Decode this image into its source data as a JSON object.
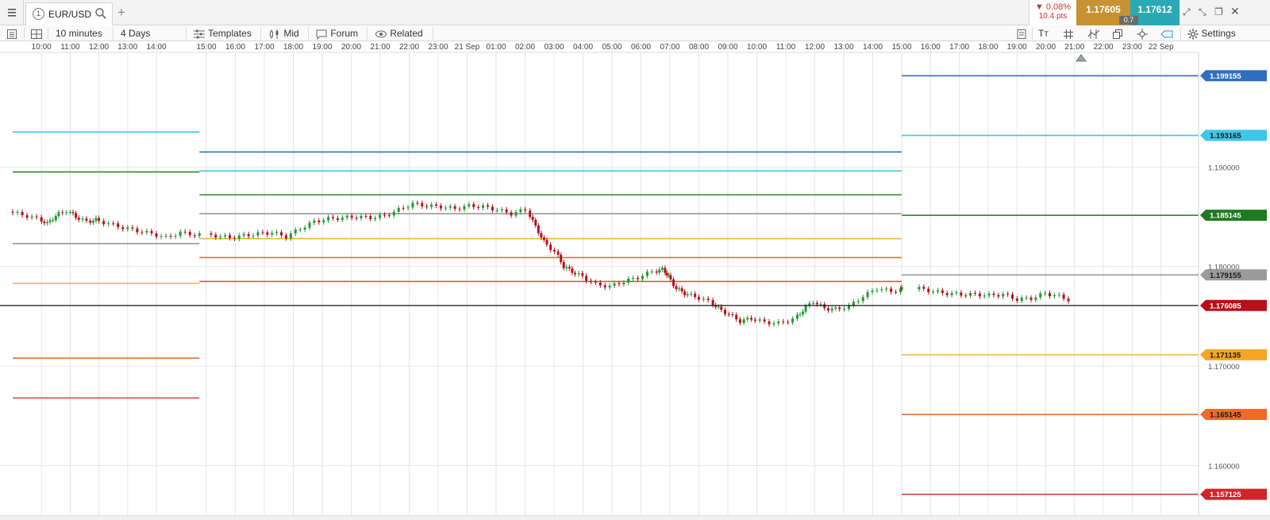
{
  "tabbar": {
    "menu_icon": "hamburger-icon",
    "tab_number": "1",
    "symbol": "EUR/USD",
    "search_icon": "search-icon",
    "add_tab": "+",
    "change_pct": "▼ 0.08%",
    "change_pts": "10.4 pts",
    "bid": "1.17605",
    "ask": "1.17612",
    "spread": "0.7",
    "bid_color": "#c89233",
    "ask_color": "#2aa9b5"
  },
  "toolbar": {
    "interval": "10 minutes",
    "range": "4 Days",
    "templates": "Templates",
    "price_type": "Mid",
    "forum": "Forum",
    "related": "Related",
    "settings": "Settings"
  },
  "chart_data": {
    "type": "candlestick",
    "y_range": [
      1.1555,
      1.2015
    ],
    "x_range_hours": [
      0,
      91.4
    ],
    "time_ticks": [
      {
        "h": 1,
        "label": "10:00"
      },
      {
        "h": 2,
        "label": "11:00"
      },
      {
        "h": 3,
        "label": "12:00"
      },
      {
        "h": 4,
        "label": "13:00"
      },
      {
        "h": 5,
        "label": "14:00"
      },
      {
        "h": 22,
        "label": "15:00"
      },
      {
        "h": 23,
        "label": "16:00"
      },
      {
        "h": 24,
        "label": "17:00"
      },
      {
        "h": 25,
        "label": "18:00"
      },
      {
        "h": 26,
        "label": "19:00"
      },
      {
        "h": 27,
        "label": "20:00"
      },
      {
        "h": 28,
        "label": "21:00"
      },
      {
        "h": 29,
        "label": "22:00"
      },
      {
        "h": 30,
        "label": "23:00"
      },
      {
        "h": 31,
        "label": "21 Sep"
      },
      {
        "h": 32,
        "label": "01:00"
      },
      {
        "h": 33,
        "label": "02:00"
      },
      {
        "h": 34,
        "label": "03:00"
      },
      {
        "h": 35,
        "label": "04:00"
      },
      {
        "h": 36,
        "label": "05:00"
      },
      {
        "h": 37,
        "label": "06:00"
      },
      {
        "h": 38,
        "label": "07:00"
      },
      {
        "h": 39,
        "label": "08:00"
      },
      {
        "h": 40,
        "label": "09:00"
      },
      {
        "h": 41,
        "label": "10:00"
      },
      {
        "h": 42,
        "label": "11:00"
      },
      {
        "h": 43,
        "label": "12:00"
      },
      {
        "h": 44,
        "label": "13:00"
      },
      {
        "h": 45,
        "label": "14:00"
      },
      {
        "h": 46,
        "label": "15:00"
      },
      {
        "h": 47,
        "label": "16:00"
      },
      {
        "h": 48,
        "label": "17:00"
      },
      {
        "h": 49,
        "label": "18:00"
      },
      {
        "h": 50,
        "label": "19:00"
      },
      {
        "h": 51,
        "label": "20:00"
      },
      {
        "h": 52,
        "label": "21:00"
      },
      {
        "h": 53,
        "label": "22:00"
      },
      {
        "h": 54,
        "label": "23:00"
      },
      {
        "h": 55,
        "label": "22 Sep"
      }
    ],
    "price_ticks": [
      {
        "value": 1.19,
        "label": "1.190000"
      },
      {
        "value": 1.18,
        "label": "1.180000"
      },
      {
        "value": 1.17,
        "label": "1.170000"
      },
      {
        "value": 1.16,
        "label": "1.160000"
      }
    ],
    "level_segments": [
      {
        "from_h": 0,
        "to_h": 6.5,
        "value": 1.1935,
        "color": "#3fc6e8"
      },
      {
        "from_h": 0,
        "to_h": 6.5,
        "value": 1.1895,
        "color": "#2a8a2a"
      },
      {
        "from_h": 0,
        "to_h": 6.5,
        "value": 1.1823,
        "color": "#999999"
      },
      {
        "from_h": 0,
        "to_h": 6.5,
        "value": 1.1783,
        "color": "#f0b43c"
      },
      {
        "from_h": 0,
        "to_h": 6.5,
        "value": 1.1708,
        "color": "#e0733a"
      },
      {
        "from_h": 0,
        "to_h": 6.5,
        "value": 1.1668,
        "color": "#d9493c"
      },
      {
        "from_h": 6.5,
        "to_h": 46,
        "value": 1.1915,
        "color": "#2f6fbf"
      },
      {
        "from_h": 6.5,
        "to_h": 46,
        "value": 1.1896,
        "color": "#3fc6e8"
      },
      {
        "from_h": 6.5,
        "to_h": 46,
        "value": 1.1872,
        "color": "#2a8a2a"
      },
      {
        "from_h": 6.5,
        "to_h": 46,
        "value": 1.1853,
        "color": "#999999"
      },
      {
        "from_h": 6.5,
        "to_h": 46,
        "value": 1.1828,
        "color": "#f0b43c"
      },
      {
        "from_h": 6.5,
        "to_h": 46,
        "value": 1.1809,
        "color": "#e0733a"
      },
      {
        "from_h": 6.5,
        "to_h": 46,
        "value": 1.1785,
        "color": "#d9493c"
      },
      {
        "from_h": 46,
        "to_h": 91.4,
        "value": 1.199155,
        "color": "#2f6fbf"
      },
      {
        "from_h": 46,
        "to_h": 91.4,
        "value": 1.193165,
        "color": "#3fc6e8"
      },
      {
        "from_h": 46,
        "to_h": 91.4,
        "value": 1.185145,
        "color": "#2a8a2a"
      },
      {
        "from_h": 46,
        "to_h": 91.4,
        "value": 1.179155,
        "color": "#999999"
      },
      {
        "from_h": 46,
        "to_h": 91.4,
        "value": 1.171135,
        "color": "#f0b43c"
      },
      {
        "from_h": 46,
        "to_h": 91.4,
        "value": 1.165145,
        "color": "#e0733a"
      },
      {
        "from_h": 46,
        "to_h": 91.4,
        "value": 1.157125,
        "color": "#c0392b"
      }
    ],
    "current_price_line": {
      "value": 1.176085,
      "color": "#000000"
    },
    "price_labels": [
      {
        "value": 1.199155,
        "label": "1.199155",
        "color": "#2f6fbf",
        "text_color": "#ffffff"
      },
      {
        "value": 1.193165,
        "label": "1.193165",
        "color": "#3fc6e8",
        "text_color": "#1a1a1a"
      },
      {
        "value": 1.185145,
        "label": "1.185145",
        "color": "#1e7a1e",
        "text_color": "#ffffff"
      },
      {
        "value": 1.179155,
        "label": "1.179155",
        "color": "#9a9a9a",
        "text_color": "#1a1a1a"
      },
      {
        "value": 1.176085,
        "label": "1.176085",
        "color": "#b8101a",
        "text_color": "#ffffff"
      },
      {
        "value": 1.171135,
        "label": "1.171135",
        "color": "#f5a623",
        "text_color": "#1a1a1a"
      },
      {
        "value": 1.165145,
        "label": "1.165145",
        "color": "#f06a2a",
        "text_color": "#1a1a1a"
      },
      {
        "value": 1.157125,
        "label": "1.157125",
        "color": "#d0252a",
        "text_color": "#ffffff"
      }
    ],
    "candle_colors": {
      "up": "#1f9a2f",
      "down": "#b8101a"
    },
    "price_path": [
      [
        0,
        1.1855
      ],
      [
        0.5,
        1.1852
      ],
      [
        1,
        1.1848
      ],
      [
        1.3,
        1.1843
      ],
      [
        1.6,
        1.1851
      ],
      [
        2,
        1.1856
      ],
      [
        2.3,
        1.185
      ],
      [
        2.7,
        1.1845
      ],
      [
        3,
        1.1847
      ],
      [
        3.5,
        1.1843
      ],
      [
        4,
        1.1839
      ],
      [
        4.5,
        1.1836
      ],
      [
        5,
        1.1833
      ],
      [
        5.5,
        1.1829
      ],
      [
        6,
        1.1834
      ],
      [
        6.5,
        1.1832
      ],
      [
        7,
        1.1831
      ],
      [
        7.5,
        1.1829
      ],
      [
        8,
        1.1831
      ],
      [
        8.5,
        1.1833
      ],
      [
        9,
        1.1834
      ],
      [
        9.5,
        1.183
      ],
      [
        10,
        1.1838
      ],
      [
        10.5,
        1.1845
      ],
      [
        11,
        1.1848
      ],
      [
        11.5,
        1.1849
      ],
      [
        12,
        1.185
      ],
      [
        12.5,
        1.1849
      ],
      [
        13,
        1.1851
      ],
      [
        13.5,
        1.1857
      ],
      [
        14,
        1.1863
      ],
      [
        14.5,
        1.1861
      ],
      [
        15,
        1.186
      ],
      [
        15.5,
        1.1858
      ],
      [
        16,
        1.1861
      ],
      [
        16.5,
        1.186
      ],
      [
        17,
        1.1857
      ],
      [
        17.5,
        1.1853
      ],
      [
        18,
        1.1857
      ],
      [
        18.3,
        1.184
      ],
      [
        18.6,
        1.1825
      ],
      [
        19,
        1.1815
      ],
      [
        19.3,
        1.18
      ],
      [
        19.6,
        1.1795
      ],
      [
        20,
        1.179
      ],
      [
        20.5,
        1.1782
      ],
      [
        21,
        1.178
      ],
      [
        21.5,
        1.1785
      ],
      [
        22,
        1.1789
      ],
      [
        22.5,
        1.1795
      ],
      [
        22.8,
        1.1797
      ],
      [
        23,
        1.179
      ],
      [
        23.3,
        1.1778
      ],
      [
        23.6,
        1.1773
      ],
      [
        24,
        1.177
      ],
      [
        24.5,
        1.1765
      ],
      [
        24.8,
        1.1758
      ],
      [
        25.2,
        1.1752
      ],
      [
        25.6,
        1.1745
      ],
      [
        26,
        1.1748
      ],
      [
        26.5,
        1.1744
      ],
      [
        27,
        1.1743
      ],
      [
        27.5,
        1.1747
      ],
      [
        27.8,
        1.1756
      ],
      [
        28.2,
        1.1765
      ],
      [
        28.6,
        1.1758
      ],
      [
        29,
        1.1757
      ],
      [
        29.5,
        1.176
      ],
      [
        30,
        1.177
      ],
      [
        30.5,
        1.1778
      ],
      [
        31,
        1.1775
      ],
      [
        31.5,
        1.1778
      ],
      [
        32,
        1.1778
      ],
      [
        32.5,
        1.1775
      ],
      [
        33,
        1.1773
      ],
      [
        33.5,
        1.1772
      ],
      [
        34,
        1.1772
      ],
      [
        34.5,
        1.1771
      ],
      [
        35,
        1.1772
      ],
      [
        35.5,
        1.1767
      ],
      [
        36,
        1.1768
      ],
      [
        36.5,
        1.1773
      ],
      [
        37,
        1.177
      ],
      [
        37.5,
        1.1765
      ],
      [
        37.8,
        1.1761
      ]
    ],
    "price_path_x_offset_note": ""
  }
}
